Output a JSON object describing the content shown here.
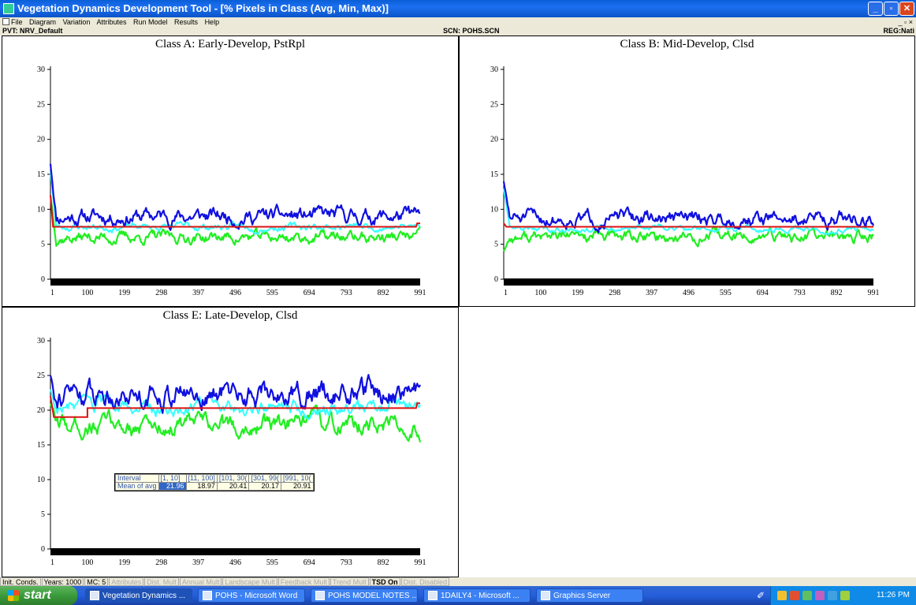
{
  "window": {
    "title": "Vegetation Dynamics Development Tool - [% Pixels in Class (Avg, Min, Max)]",
    "buttons": {
      "minimize": "_",
      "maximize": "▫",
      "close": "✕"
    }
  },
  "menu": {
    "items": [
      "File",
      "Diagram",
      "Variation",
      "Attributes",
      "Run Model",
      "Results",
      "Help"
    ],
    "mdi_controls": "_ ▫ ×"
  },
  "info": {
    "pvt": "PVT: NRV_Default",
    "scn": "SCN: POHS.SCN",
    "reg": "REG:Nati"
  },
  "colors": {
    "max": "#1010e0",
    "avg": "#33ffff",
    "min": "#22ee22",
    "threshold": "#dd1111"
  },
  "chart_data": [
    {
      "type": "line",
      "title": "Class A: Early-Develop, PstRpl",
      "x_ticks": [
        "1",
        "100",
        "199",
        "298",
        "397",
        "496",
        "595",
        "694",
        "793",
        "892",
        "991"
      ],
      "ylim": [
        0,
        30
      ],
      "y_ticks": [
        "0",
        "5",
        "10",
        "15",
        "20",
        "25",
        "30"
      ],
      "xlim": [
        1,
        991
      ],
      "series": [
        {
          "role": "max",
          "start": 16.5,
          "level": 9.0,
          "amp": 1.3,
          "seed": 11
        },
        {
          "role": "avg",
          "start": 15.5,
          "level": 7.5,
          "amp": 0.6,
          "seed": 23
        },
        {
          "role": "min",
          "start": 12.0,
          "level": 6.0,
          "amp": 1.0,
          "seed": 37
        }
      ],
      "steps": [
        [
          1,
          12.0
        ],
        [
          8,
          7.5
        ],
        [
          980,
          7.5
        ],
        [
          983,
          8.0
        ],
        [
          991,
          8.0
        ]
      ]
    },
    {
      "type": "line",
      "title": "Class B: Mid-Develop, Clsd",
      "x_ticks": [
        "1",
        "100",
        "199",
        "298",
        "397",
        "496",
        "595",
        "694",
        "793",
        "892",
        "991"
      ],
      "ylim": [
        0,
        30
      ],
      "y_ticks": [
        "0",
        "5",
        "10",
        "15",
        "20",
        "25",
        "30"
      ],
      "xlim": [
        1,
        991
      ],
      "series": [
        {
          "role": "max",
          "start": 14.0,
          "level": 8.7,
          "amp": 1.2,
          "seed": 51
        },
        {
          "role": "avg",
          "start": 13.0,
          "level": 7.3,
          "amp": 0.5,
          "seed": 63
        },
        {
          "role": "min",
          "start": 4.0,
          "level": 6.0,
          "amp": 1.0,
          "seed": 77
        }
      ],
      "steps": [
        [
          1,
          8.0
        ],
        [
          8,
          7.5
        ],
        [
          991,
          7.5
        ]
      ]
    },
    {
      "type": "line",
      "title": "Class E: Late-Develop, Clsd",
      "x_ticks": [
        "1",
        "100",
        "199",
        "298",
        "397",
        "496",
        "595",
        "694",
        "793",
        "892",
        "991"
      ],
      "ylim": [
        0,
        30
      ],
      "y_ticks": [
        "0",
        "5",
        "10",
        "15",
        "20",
        "25",
        "30"
      ],
      "xlim": [
        1,
        991
      ],
      "series": [
        {
          "role": "max",
          "start": 25.0,
          "level": 22.5,
          "amp": 2.0,
          "seed": 91
        },
        {
          "role": "avg",
          "start": 23.0,
          "level": 20.3,
          "amp": 1.2,
          "seed": 103
        },
        {
          "role": "min",
          "start": 21.0,
          "level": 17.8,
          "amp": 1.6,
          "seed": 117
        }
      ],
      "steps": [
        [
          1,
          22.0
        ],
        [
          10,
          19.0
        ],
        [
          100,
          19.0
        ],
        [
          100,
          20.3
        ],
        [
          980,
          20.3
        ],
        [
          983,
          21.0
        ],
        [
          991,
          21.0
        ]
      ]
    }
  ],
  "stats_table": {
    "header": [
      "Interval",
      "[1, 10]",
      "[11, 100]",
      "[101, 30(",
      "[301, 99(",
      "[991, 10("
    ],
    "row_label": "Mean of avg",
    "values": [
      "21.96",
      "18.97",
      "20.41",
      "20.17",
      "20.91"
    ]
  },
  "status": [
    "Init. Conds.",
    "Years: 1000",
    "MC: 5",
    "Attributes",
    "Dist. Mult",
    "Annual Mult",
    "Landscape Mult",
    "Feedback Mult",
    "Trend Mult",
    "TSD On",
    "Dist. Disabled"
  ],
  "taskbar": {
    "start": "start",
    "tasks": [
      "Vegetation Dynamics ...",
      "POHS - Microsoft Word",
      "POHS MODEL NOTES ...",
      "1DAILY4 - Microsoft ...",
      "Graphics Server"
    ],
    "clock": "11:26 PM"
  }
}
